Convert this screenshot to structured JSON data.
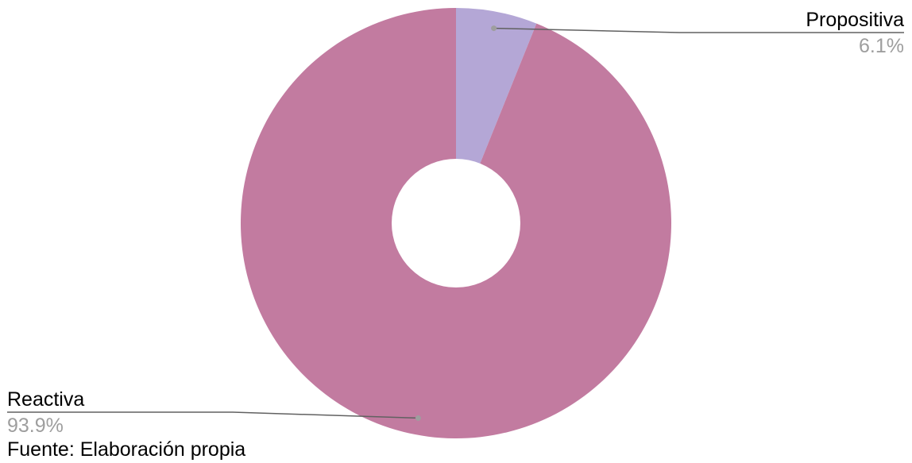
{
  "chart_data": {
    "type": "pie",
    "donut": true,
    "title": "",
    "categories": [
      "Propositiva",
      "Reactiva"
    ],
    "values": [
      6.1,
      93.9
    ],
    "value_labels": [
      "6.1%",
      "93.9%"
    ],
    "colors": [
      "#b4a7d6",
      "#c27ba0"
    ],
    "start_angle_deg": 0,
    "direction": "clockwise",
    "legend": "none",
    "label_placement": "outside-with-leader-lines",
    "label_color": "#000000",
    "value_label_color": "#9e9e9e",
    "leader_color": "#616161"
  },
  "source": {
    "text": "Fuente: Elaboración propia"
  }
}
